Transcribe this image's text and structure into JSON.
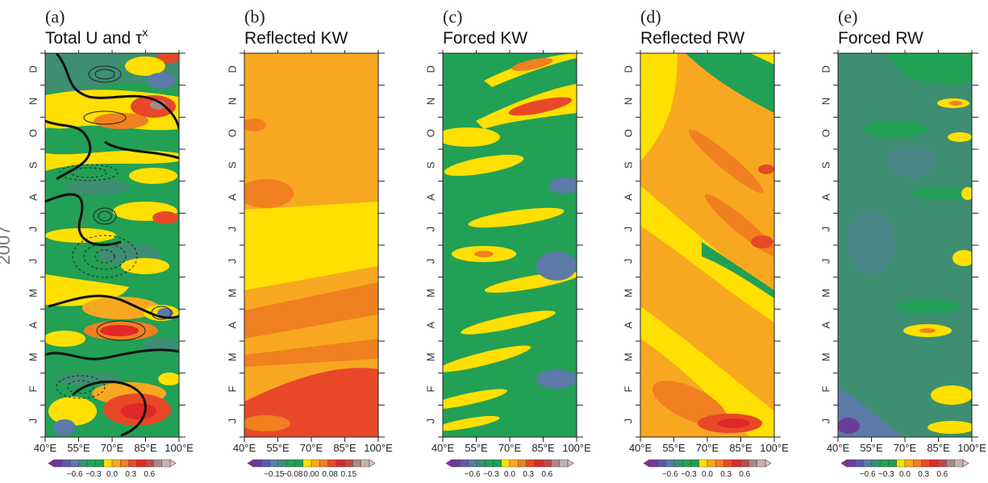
{
  "figure": {
    "year_label": "2007",
    "colors": {
      "cb": [
        "#a020a0",
        "#6a3d9a",
        "#5a5aa8",
        "#5b7aa8",
        "#3e8e72",
        "#22a055",
        "#20a050",
        "#ffe000",
        "#f8a820",
        "#f08020",
        "#e84828",
        "#e02828",
        "#c04848",
        "#a88888",
        "#c8b0b0",
        "#e8c0c0"
      ],
      "green": "#22a055",
      "teal": "#3e8e72",
      "slate": "#5b7aa8",
      "yellow": "#ffe000",
      "orange": "#f8a820",
      "dorange": "#f08020",
      "red": "#e84828",
      "dred": "#e02828",
      "purple": "#6a3d9a"
    }
  },
  "chart_data": [
    {
      "type": "heatmap",
      "panel": "(a)",
      "title": "Total U and τ",
      "title_sup": "x",
      "x_ticks": [
        "40°E",
        "55°E",
        "70°E",
        "85°E",
        "100°E"
      ],
      "xlim": [
        40,
        100
      ],
      "y_ticks": [
        "J",
        "F",
        "M",
        "A",
        "M",
        "J",
        "J",
        "A",
        "S",
        "O",
        "N",
        "D"
      ],
      "colorbar_labels": [
        "−0.6",
        "−0.3",
        "0.0",
        "0.3",
        "0.6"
      ],
      "overlay": "contours of wind stress"
    },
    {
      "type": "heatmap",
      "panel": "(b)",
      "title": "Reflected KW",
      "x_ticks": [
        "40°E",
        "55°E",
        "70°E",
        "85°E",
        "100°E"
      ],
      "xlim": [
        40,
        100
      ],
      "y_ticks": [
        "J",
        "F",
        "M",
        "A",
        "M",
        "J",
        "J",
        "A",
        "S",
        "O",
        "N",
        "D"
      ],
      "colorbar_labels": [
        "−0.15",
        "−0.08",
        "0.00",
        "0.08",
        "0.15"
      ]
    },
    {
      "type": "heatmap",
      "panel": "(c)",
      "title": "Forced KW",
      "x_ticks": [
        "40°E",
        "55°E",
        "70°E",
        "85°E",
        "100°E"
      ],
      "xlim": [
        40,
        100
      ],
      "y_ticks": [
        "J",
        "F",
        "M",
        "A",
        "M",
        "J",
        "J",
        "A",
        "S",
        "O",
        "N",
        "D"
      ],
      "colorbar_labels": [
        "−0.6",
        "−0.3",
        "0.0",
        "0.3",
        "0.6"
      ]
    },
    {
      "type": "heatmap",
      "panel": "(d)",
      "title": "Reflected RW",
      "x_ticks": [
        "40°E",
        "55°E",
        "70°E",
        "85°E",
        "100°E"
      ],
      "xlim": [
        40,
        100
      ],
      "y_ticks": [
        "J",
        "F",
        "M",
        "A",
        "M",
        "J",
        "J",
        "A",
        "S",
        "O",
        "N",
        "D"
      ],
      "colorbar_labels": [
        "−0.6",
        "−0.3",
        "0.0",
        "0.3",
        "0.6"
      ]
    },
    {
      "type": "heatmap",
      "panel": "(e)",
      "title": "Forced RW",
      "x_ticks": [
        "40°E",
        "55°E",
        "70°E",
        "85°E",
        "100°E"
      ],
      "xlim": [
        40,
        100
      ],
      "y_ticks": [
        "J",
        "F",
        "M",
        "A",
        "M",
        "J",
        "J",
        "A",
        "S",
        "O",
        "N",
        "D"
      ],
      "colorbar_labels": [
        "−0.6",
        "−0.3",
        "0.0",
        "0.3",
        "0.6"
      ]
    }
  ]
}
